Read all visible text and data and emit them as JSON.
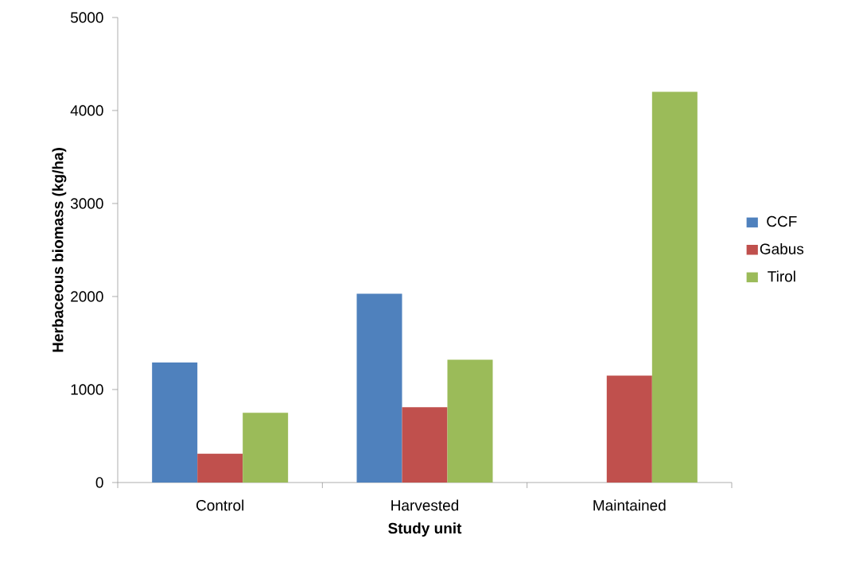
{
  "chart_data": {
    "type": "bar",
    "xlabel": "Study unit",
    "ylabel": "Herbaceous biomass (kg/ha)",
    "categories": [
      "Control",
      "Harvested",
      "Maintained"
    ],
    "series": [
      {
        "name": "CCF",
        "color": "#4f81bd",
        "values": [
          1290,
          2030,
          null
        ]
      },
      {
        "name": "Gabus",
        "color": "#c0504d",
        "values": [
          310,
          810,
          1150
        ]
      },
      {
        "name": "Tirol",
        "color": "#9bbb59",
        "values": [
          750,
          1320,
          4200
        ]
      }
    ],
    "ylim": [
      0,
      5000
    ],
    "yticks": [
      0,
      1000,
      2000,
      3000,
      4000,
      5000
    ],
    "grid": false,
    "legend": "right"
  }
}
